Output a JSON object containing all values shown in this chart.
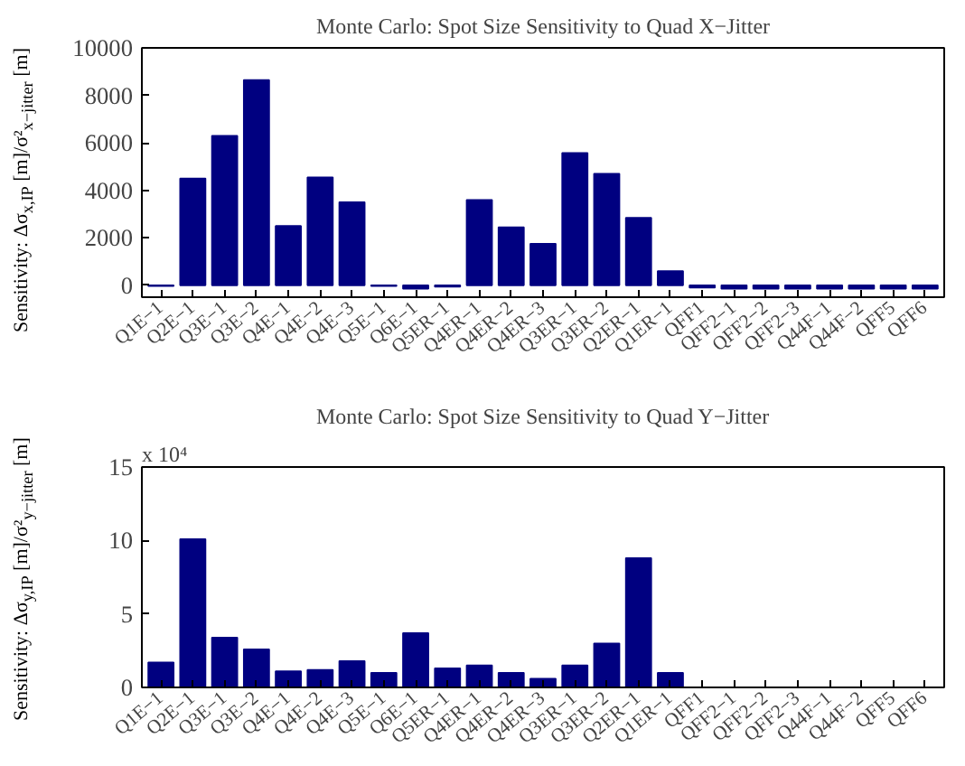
{
  "chart_data": [
    {
      "type": "bar",
      "title": "Monte Carlo: Spot Size Sensitivity to Quad X−Jitter",
      "ylabel": "Sensitivity: Δσ$_{x,IP}$ [m]/σ²$_{x−jitter}$ [m]",
      "categories": [
        "Q1E−1",
        "Q2E−1",
        "Q3E−1",
        "Q3E−2",
        "Q4E−1",
        "Q4E−2",
        "Q4E−3",
        "Q5E−1",
        "Q6E−1",
        "Q5ER−1",
        "Q4ER−1",
        "Q4ER−2",
        "Q4ER−3",
        "Q3ER−1",
        "Q3ER−2",
        "Q2ER−1",
        "Q1ER−1",
        "QFF1",
        "QFF2−1",
        "QFF2−2",
        "QFF2−3",
        "Q44F−1",
        "Q44F−2",
        "QFF5",
        "QFF6"
      ],
      "values": [
        -30,
        4500,
        6300,
        8650,
        2500,
        4550,
        3500,
        -30,
        -150,
        -60,
        3600,
        2450,
        1750,
        5580,
        4700,
        2850,
        600,
        -100,
        -150,
        -150,
        -150,
        -150,
        -150,
        -150,
        -150
      ],
      "color": "#000080",
      "ylim": [
        -500,
        10000
      ],
      "yticks": [
        0,
        2000,
        4000,
        6000,
        8000,
        10000
      ],
      "grid": false
    },
    {
      "type": "bar",
      "title": "Monte Carlo: Spot Size Sensitivity to Quad Y−Jitter",
      "ylabel": "Sensitivity: Δσ$_{y,IP}$ [m]/σ²$_{y−jitter}$ [m]",
      "annotations": [
        "x 10⁴"
      ],
      "categories": [
        "Q1E−1",
        "Q2E−1",
        "Q3E−1",
        "Q3E−2",
        "Q4E−1",
        "Q4E−2",
        "Q4E−3",
        "Q5E−1",
        "Q6E−1",
        "Q5ER−1",
        "Q4ER−1",
        "Q4ER−2",
        "Q4ER−3",
        "Q3ER−1",
        "Q3ER−2",
        "Q2ER−1",
        "Q1ER−1",
        "QFF1",
        "QFF2−1",
        "QFF2−2",
        "QFF2−3",
        "Q44F−1",
        "Q44F−2",
        "QFF5",
        "QFF6"
      ],
      "values": [
        1.7,
        10.1,
        3.4,
        2.6,
        1.1,
        1.2,
        1.8,
        1.0,
        3.7,
        1.3,
        1.5,
        1.0,
        0.6,
        1.5,
        3.0,
        8.8,
        1.0,
        0,
        0,
        0,
        0,
        0,
        0,
        0,
        0
      ],
      "color": "#000080",
      "ylim": [
        0,
        15
      ],
      "yticks": [
        0,
        5,
        10,
        15
      ],
      "grid": false
    }
  ]
}
